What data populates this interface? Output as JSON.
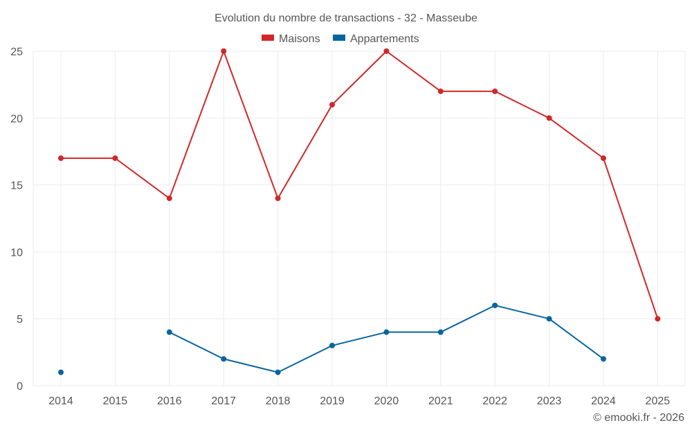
{
  "chart_data": {
    "type": "line",
    "title": "Evolution du nombre de transactions - 32 - Masseube",
    "categories": [
      "2014",
      "2015",
      "2016",
      "2017",
      "2018",
      "2019",
      "2020",
      "2021",
      "2022",
      "2023",
      "2024",
      "2025"
    ],
    "series": [
      {
        "name": "Maisons",
        "color": "#d32628",
        "values": [
          17,
          17,
          14,
          25,
          14,
          21,
          25,
          22,
          22,
          20,
          17,
          5
        ]
      },
      {
        "name": "Appartements",
        "color": "#07659e",
        "values": [
          1,
          null,
          4,
          2,
          1,
          3,
          4,
          4,
          6,
          5,
          2,
          null
        ]
      }
    ],
    "ylim": [
      0,
      25
    ],
    "yticks": [
      0,
      5,
      10,
      15,
      20,
      25
    ],
    "xlabel": "",
    "ylabel": "",
    "grid": true,
    "legend": "top-center"
  },
  "credit": "© emooki.fr - 2026"
}
